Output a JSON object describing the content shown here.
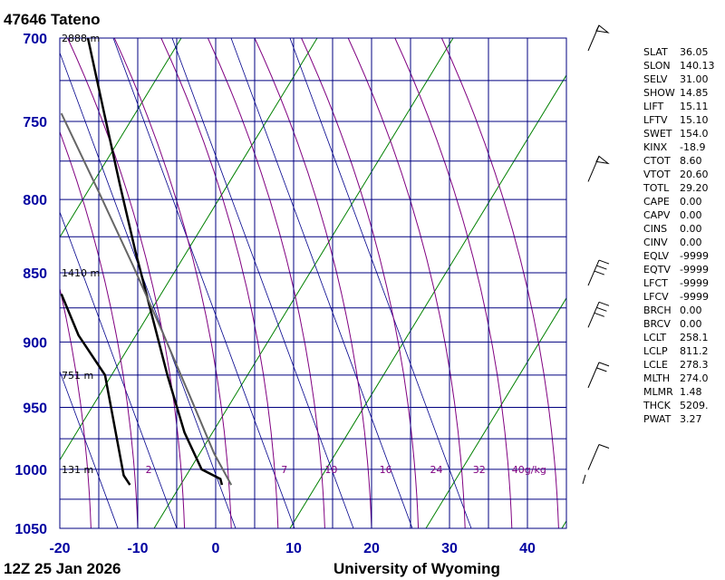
{
  "header": {
    "station": "47646  Tateno",
    "datetime": "12Z 25 Jan 2026",
    "credit": "University of Wyoming"
  },
  "chart_data": {
    "type": "line",
    "title": "47646  Tateno",
    "pressure_ticks": [
      700,
      750,
      800,
      850,
      900,
      950,
      1000,
      1050
    ],
    "temperature_ticks": [
      -20,
      -10,
      0,
      10,
      20,
      30,
      40
    ],
    "xlim": [
      -20,
      45
    ],
    "ylim": [
      1050,
      700
    ],
    "height_labels": [
      {
        "p": 700,
        "text": "2888 m"
      },
      {
        "p": 850,
        "text": "1410 m"
      },
      {
        "p": 925,
        "text": "751 m"
      },
      {
        "p": 1000,
        "text": "131 m"
      }
    ],
    "mixing_ratio_labels": [
      {
        "t": -9,
        "text": "2"
      },
      {
        "t": 8.4,
        "text": "7"
      },
      {
        "t": 14,
        "text": "10"
      },
      {
        "t": 21,
        "text": "16"
      },
      {
        "t": 27.5,
        "text": "24"
      },
      {
        "t": 33,
        "text": "32"
      },
      {
        "t": 38,
        "text": "40g/kg"
      }
    ],
    "series": [
      {
        "points": [
          [
            -16.4,
            700
          ],
          [
            -14.3,
            745
          ],
          [
            -12.3,
            790
          ],
          [
            -10.3,
            835
          ],
          [
            -8.2,
            880
          ],
          [
            -6.2,
            925
          ],
          [
            -4,
            970
          ],
          [
            -1.8,
            1000
          ],
          [
            0.6,
            1008
          ],
          [
            0.8,
            1013
          ]
        ]
      },
      {
        "points": [
          [
            -19.8,
            865
          ],
          [
            -17.6,
            895
          ],
          [
            -14.2,
            925
          ],
          [
            -11.8,
            1005
          ],
          [
            -11,
            1013
          ]
        ]
      },
      {
        "points": [
          [
            -19.8,
            745
          ],
          [
            -15,
            795
          ],
          [
            -10.6,
            845
          ],
          [
            -6.8,
            893
          ],
          [
            -3.4,
            940
          ],
          [
            -0.2,
            987
          ],
          [
            2,
            1013
          ]
        ]
      }
    ]
  },
  "indices": [
    {
      "key": "SLAT",
      "value": "36.05"
    },
    {
      "key": "SLON",
      "value": "140.13"
    },
    {
      "key": "SELV",
      "value": "31.00"
    },
    {
      "key": "SHOW",
      "value": "14.85"
    },
    {
      "key": "LIFT",
      "value": "15.11"
    },
    {
      "key": "LFTV",
      "value": "15.10"
    },
    {
      "key": "SWET",
      "value": "154.0"
    },
    {
      "key": "KINX",
      "value": "-18.9"
    },
    {
      "key": "CTOT",
      "value": "8.60"
    },
    {
      "key": "VTOT",
      "value": "20.60"
    },
    {
      "key": "TOTL",
      "value": "29.20"
    },
    {
      "key": "CAPE",
      "value": "0.00"
    },
    {
      "key": "CAPV",
      "value": "0.00"
    },
    {
      "key": "CINS",
      "value": "0.00"
    },
    {
      "key": "CINV",
      "value": "0.00"
    },
    {
      "key": "EQLV",
      "value": "-9999"
    },
    {
      "key": "EQTV",
      "value": "-9999"
    },
    {
      "key": "LFCT",
      "value": "-9999"
    },
    {
      "key": "LFCV",
      "value": "-9999"
    },
    {
      "key": "BRCH",
      "value": "0.00"
    },
    {
      "key": "BRCV",
      "value": "0.00"
    },
    {
      "key": "LCLT",
      "value": "258.1"
    },
    {
      "key": "LCLP",
      "value": "811.2"
    },
    {
      "key": "LCLE",
      "value": "278.3"
    },
    {
      "key": "MLTH",
      "value": "274.0"
    },
    {
      "key": "MLMR",
      "value": "1.48"
    },
    {
      "key": "THCK",
      "value": "5209."
    },
    {
      "key": "PWAT",
      "value": "3.27"
    }
  ],
  "colors": {
    "frame": "#000080",
    "dry": "#008000",
    "moist": "#800080",
    "mix": "#00008b",
    "profile": "#000000",
    "parcel": "#666666"
  }
}
